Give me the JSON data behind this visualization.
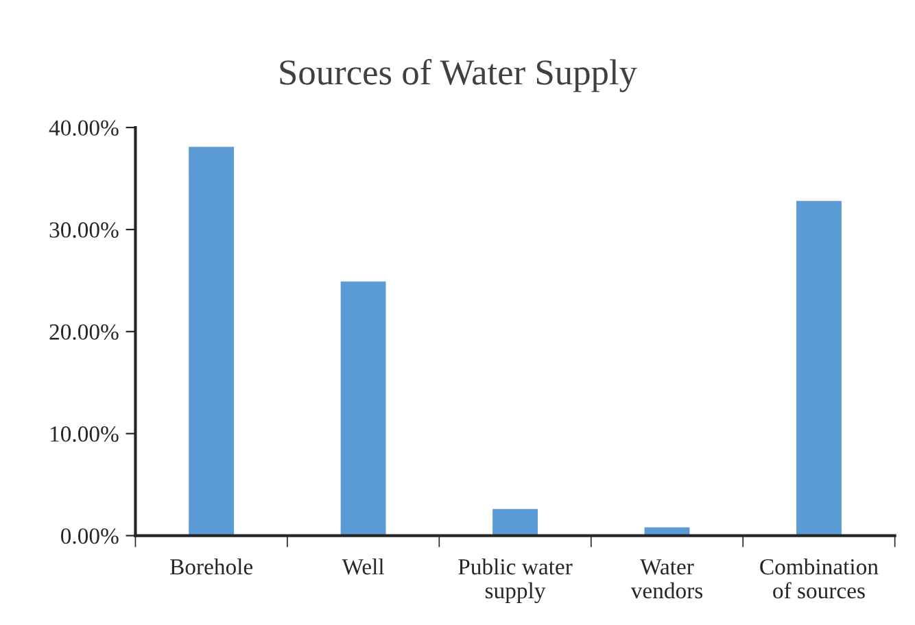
{
  "chart_data": {
    "type": "bar",
    "title": "Sources of Water Supply",
    "categories": [
      "Borehole",
      "Well",
      "Public water\nsupply",
      "Water\nvendors",
      "Combination\nof sources"
    ],
    "values": [
      38.2,
      25.0,
      2.7,
      0.9,
      32.9
    ],
    "color": "#5b9bd5",
    "ylim": [
      0,
      40
    ],
    "yticks": [
      {
        "value": 0,
        "label": "0.00%"
      },
      {
        "value": 10,
        "label": "10.00%"
      },
      {
        "value": 20,
        "label": "20.00%"
      },
      {
        "value": 30,
        "label": "30.00%"
      },
      {
        "value": 40,
        "label": "40.00%"
      }
    ],
    "grid": false,
    "legend": false
  }
}
